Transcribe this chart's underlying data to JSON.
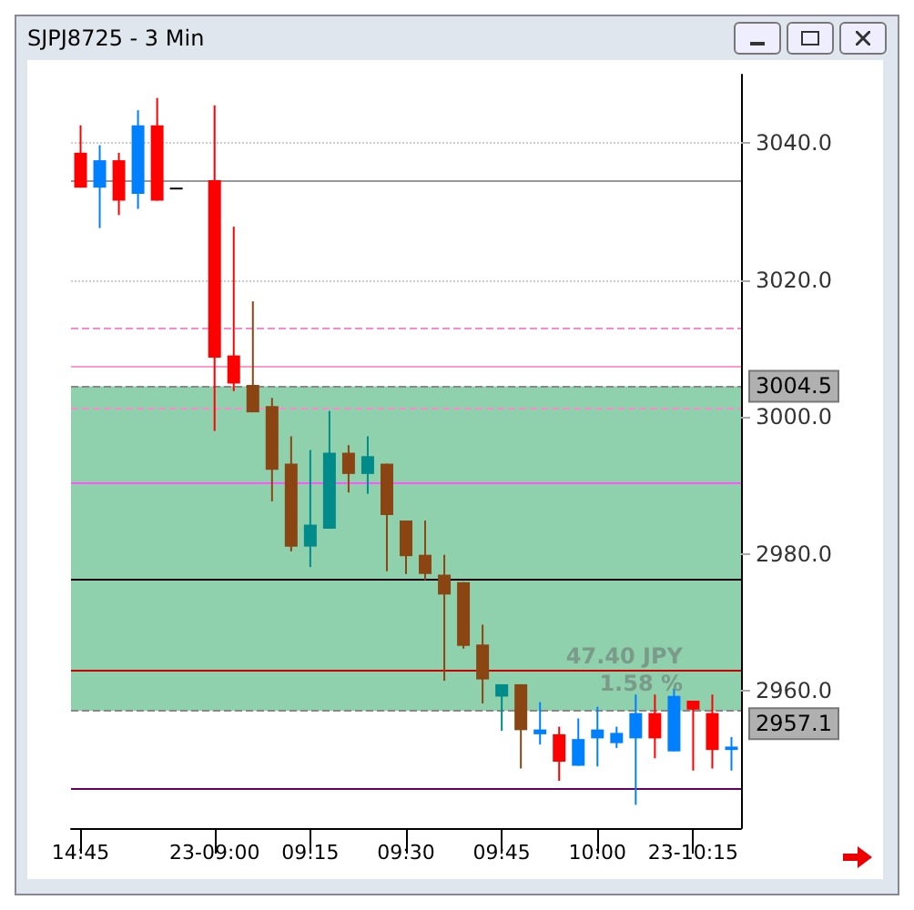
{
  "chart_data": {
    "type": "candlestick",
    "title": "SJPJ8725 - 3 Min",
    "categories": [
      "14:45",
      null,
      null,
      null,
      null,
      null,
      null,
      "23-09:00",
      null,
      null,
      null,
      null,
      "09:15",
      null,
      null,
      null,
      null,
      "09:30",
      null,
      null,
      null,
      null,
      "09:45",
      null,
      null,
      null,
      null,
      "10:00",
      null,
      null,
      null,
      null,
      "23-10:15",
      null,
      null
    ],
    "ohlc": [
      [
        3038.6,
        3042.6,
        3033.5,
        3033.5
      ],
      [
        3033.5,
        3039.7,
        3027.6,
        3037.5
      ],
      [
        3037.5,
        3038.6,
        3029.5,
        3031.6
      ],
      [
        3032.6,
        3044.8,
        3030.4,
        3042.6
      ],
      [
        3042.6,
        3046.6,
        3031.6,
        3031.6
      ],
      [
        3033.5,
        3033.5,
        3033.5,
        3033.5
      ],
      null,
      [
        3034.6,
        3045.5,
        2998.0,
        3008.7
      ],
      [
        3009.0,
        3027.8,
        3003.8,
        3004.9
      ],
      [
        3004.7,
        3016.9,
        3000.7,
        3000.7
      ],
      [
        3001.6,
        3002.8,
        2987.7,
        2992.3
      ],
      [
        2993.2,
        2997.2,
        2980.4,
        2981.1
      ],
      [
        2981.1,
        2995.2,
        2978.1,
        2984.3
      ],
      [
        2983.7,
        3000.9,
        2983.7,
        2994.8
      ],
      [
        2994.8,
        2995.9,
        2989.0,
        2991.7
      ],
      [
        2991.7,
        2997.2,
        2988.8,
        2994.3
      ],
      [
        2993.2,
        2993.2,
        2977.5,
        2985.7
      ],
      [
        2984.9,
        2984.9,
        2977.1,
        2979.7
      ],
      [
        2979.9,
        2984.9,
        2976.2,
        2977.1
      ],
      [
        2977.0,
        2979.9,
        2961.5,
        2974.1
      ],
      [
        2975.9,
        2975.9,
        2966.2,
        2966.6
      ],
      [
        2966.8,
        2969.7,
        2958.2,
        2961.7
      ],
      [
        2959.2,
        2961.0,
        2954.2,
        2961.0
      ],
      [
        2961.0,
        2961.0,
        2948.7,
        2954.3
      ],
      [
        2953.7,
        2958.4,
        2952.2,
        2954.4
      ],
      [
        2953.7,
        2954.8,
        2946.9,
        2949.7
      ],
      [
        2949.1,
        2956.0,
        2949.1,
        2953.0
      ],
      [
        2953.1,
        2957.7,
        2949.0,
        2954.4
      ],
      [
        2952.4,
        2954.8,
        2951.7,
        2953.9
      ],
      [
        2953.1,
        2959.5,
        2943.4,
        2956.8
      ],
      [
        2956.8,
        2959.5,
        2950.2,
        2953.1
      ],
      [
        2951.2,
        2960.4,
        2951.2,
        2959.3
      ],
      [
        2958.6,
        2958.6,
        2948.4,
        2957.3
      ],
      [
        2956.8,
        2959.5,
        2948.7,
        2951.4
      ],
      [
        2951.4,
        2953.3,
        2948.4,
        2951.9
      ]
    ],
    "colors": [
      "#ff0000",
      "#0080ff",
      "#ff0000",
      "#0080ff",
      "#ff0000",
      "#000000",
      null,
      "#ff0000",
      "#ff0000",
      "#8b4513",
      "#8b4513",
      "#8b4513",
      "#008b8b",
      "#008b8b",
      "#8b4513",
      "#008b8b",
      "#8b4513",
      "#8b4513",
      "#8b4513",
      "#8b4513",
      "#8b4513",
      "#8b4513",
      "#008b8b",
      "#8b4513",
      "#0080ff",
      "#ff0000",
      "#0080ff",
      "#0080ff",
      "#0080ff",
      "#0080ff",
      "#ff0000",
      "#0080ff",
      "#ff0000",
      "#ff0000",
      "#0080ff"
    ],
    "ylim": [
      2940,
      3050
    ],
    "yticks": [
      {
        "value": 2960,
        "label": "2960.0"
      },
      {
        "value": 2980,
        "label": "2980.0"
      },
      {
        "value": 3000,
        "label": "3000.0"
      },
      {
        "value": 3020,
        "label": "3020.0"
      },
      {
        "value": 3040,
        "label": "3040.0"
      }
    ],
    "grid": true,
    "bands": [
      {
        "axis": "y",
        "from": 2957.1,
        "to": 3004.5,
        "color": "#8fd1ad"
      }
    ],
    "ref_lines": [
      {
        "axis": "y",
        "value": 3034.4,
        "color": "#999999",
        "line_style": "solid"
      },
      {
        "axis": "y",
        "value": 3013.1,
        "color": "#ff88cc",
        "line_style": "dashed"
      },
      {
        "axis": "y",
        "value": 3007.3,
        "color": "#ff99cc",
        "line_style": "solid"
      },
      {
        "axis": "y",
        "value": 3004.5,
        "label": "3004.5",
        "color": "#888888",
        "line_style": "dashed"
      },
      {
        "axis": "y",
        "value": 3001.2,
        "color": "#ff88cc",
        "line_style": "dashed"
      },
      {
        "axis": "y",
        "value": 2990.5,
        "color": "#ff55ff",
        "line_style": "solid"
      },
      {
        "axis": "y",
        "value": 2976.4,
        "color": "#000000",
        "line_style": "solid"
      },
      {
        "axis": "y",
        "value": 2963.1,
        "color": "#cc0000",
        "line_style": "solid"
      },
      {
        "axis": "y",
        "value": 2957.1,
        "label": "2957.1",
        "color": "#888888",
        "line_style": "dashed"
      },
      {
        "axis": "y",
        "value": 2945.8,
        "color": "#660066",
        "line_style": "solid"
      }
    ],
    "annotations": [
      "47.40 JPY",
      "1.58 %"
    ]
  }
}
